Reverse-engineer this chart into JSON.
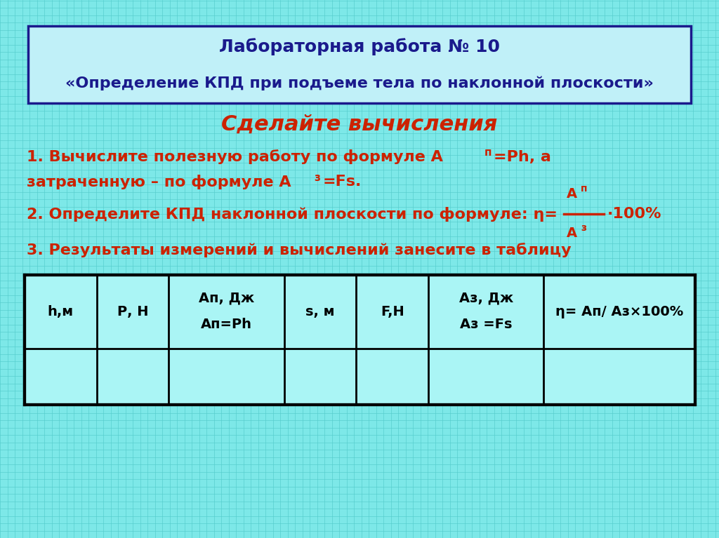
{
  "background_color": "#7de8e8",
  "grid_color": "#55cccc",
  "title_box_color": "#c0f0f8",
  "title_box_border": "#1a1a8c",
  "title_line1": "Лабораторная работа № 10",
  "title_line2": "«Определение КПД при подъеме тела по наклонной плоскости»",
  "title_color": "#1a1a8c",
  "section_title": "Сделайте вычисления",
  "section_title_color": "#cc2200",
  "text_color": "#cc2200",
  "text3": "3. Результаты измерений и вычислений занесите в таблицу",
  "table_bg": "#aaf5f5",
  "table_border": "#000000",
  "col_headers_line1": [
    "h,м",
    "Р, Н",
    "Ап, Дж",
    "s, м",
    "F,Н",
    "Аз, Дж",
    "η= Ап/ Аз×100%"
  ],
  "col_headers_line2": [
    "",
    "",
    "Ап=Ph",
    "",
    "",
    "Аз =Fs",
    ""
  ],
  "figsize": [
    10.24,
    7.67
  ],
  "dpi": 100
}
